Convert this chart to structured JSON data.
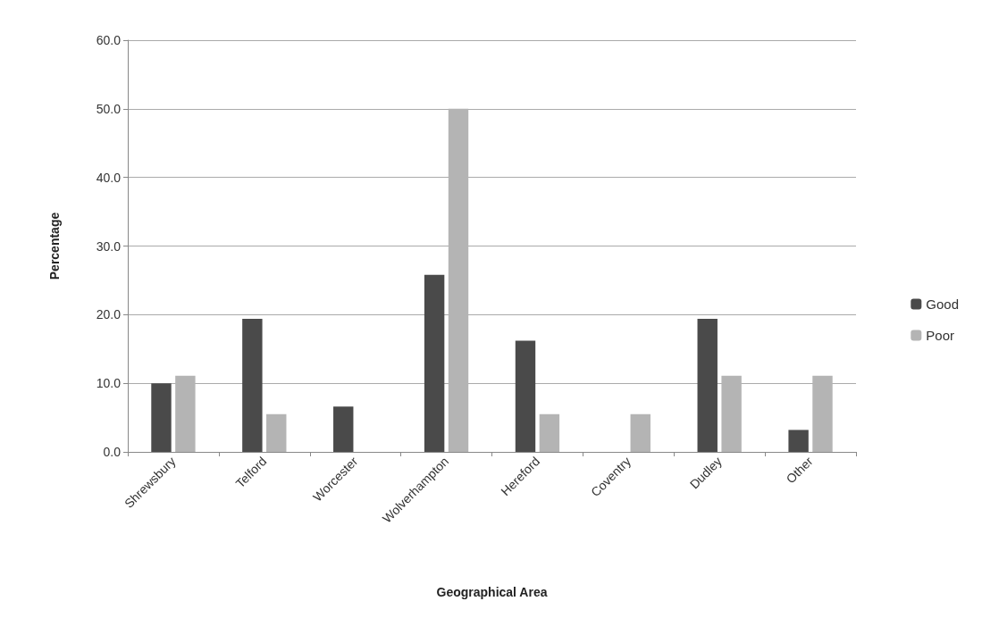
{
  "chart_data": {
    "type": "bar",
    "xlabel": "Geographical Area",
    "ylabel": "Percentage",
    "categories": [
      "Shrewsbury",
      "Telford",
      "Worcester",
      "Wolverhampton",
      "Hereford",
      "Coventry",
      "Dudley",
      "Other"
    ],
    "series": [
      {
        "name": "Good",
        "color": "#4a4a4a",
        "values": [
          10.0,
          19.4,
          6.6,
          25.8,
          16.2,
          0,
          19.4,
          3.2
        ]
      },
      {
        "name": "Poor",
        "color": "#b4b4b4",
        "values": [
          11.1,
          5.5,
          0,
          50.0,
          5.5,
          5.5,
          11.1,
          11.1
        ]
      }
    ],
    "ylim": [
      0,
      60
    ],
    "yticks": [
      {
        "value": 0,
        "label": "0.0"
      },
      {
        "value": 10,
        "label": "10.0"
      },
      {
        "value": 20,
        "label": "20.0"
      },
      {
        "value": 30,
        "label": "30.0"
      },
      {
        "value": 40,
        "label": "40.0"
      },
      {
        "value": 50,
        "label": "50.0"
      },
      {
        "value": 60,
        "label": "60.0"
      }
    ],
    "grid": "y",
    "legend": "right"
  }
}
